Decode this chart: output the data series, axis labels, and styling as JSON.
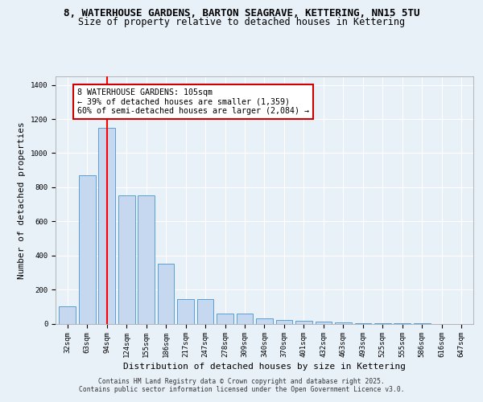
{
  "title_line1": "8, WATERHOUSE GARDENS, BARTON SEAGRAVE, KETTERING, NN15 5TU",
  "title_line2": "Size of property relative to detached houses in Kettering",
  "xlabel": "Distribution of detached houses by size in Kettering",
  "ylabel": "Number of detached properties",
  "categories": [
    "32sqm",
    "63sqm",
    "94sqm",
    "124sqm",
    "155sqm",
    "186sqm",
    "217sqm",
    "247sqm",
    "278sqm",
    "309sqm",
    "340sqm",
    "370sqm",
    "401sqm",
    "432sqm",
    "463sqm",
    "493sqm",
    "525sqm",
    "555sqm",
    "586sqm",
    "616sqm",
    "647sqm"
  ],
  "values": [
    100,
    870,
    1150,
    750,
    750,
    350,
    145,
    145,
    60,
    60,
    30,
    20,
    15,
    10,
    5,
    3,
    2,
    1,
    1,
    0,
    0
  ],
  "bar_color": "#c5d8f0",
  "bar_edge_color": "#5a9fd4",
  "red_line_x": 2,
  "ylim": [
    0,
    1450
  ],
  "yticks": [
    0,
    200,
    400,
    600,
    800,
    1000,
    1200,
    1400
  ],
  "annotation_text": "8 WATERHOUSE GARDENS: 105sqm\n← 39% of detached houses are smaller (1,359)\n60% of semi-detached houses are larger (2,084) →",
  "annotation_box_color": "#ffffff",
  "annotation_box_edge": "#cc0000",
  "footer_text": "Contains HM Land Registry data © Crown copyright and database right 2025.\nContains public sector information licensed under the Open Government Licence v3.0.",
  "background_color": "#e8f0f8",
  "grid_color": "#ffffff",
  "title_fontsize": 9,
  "subtitle_fontsize": 8.5,
  "axis_label_fontsize": 8,
  "tick_fontsize": 6.5,
  "footer_fontsize": 5.8,
  "annot_fontsize": 7.2
}
